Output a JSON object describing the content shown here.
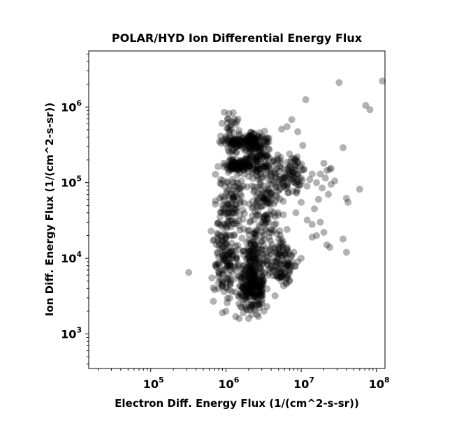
{
  "chart_data": {
    "type": "scatter",
    "title": "POLAR/HYD  Ion Differential Energy Flux",
    "xlabel": "Electron Diff. Energy Flux (1/(cm^2-s-sr))",
    "ylabel": "Ion Diff. Energy Flux (1/(cm^2-s-sr))",
    "xscale": "log",
    "yscale": "log",
    "xlim": [
      15000,
      130000000
    ],
    "ylim": [
      350,
      5500000
    ],
    "x_ticks": [
      {
        "base": "10",
        "exp": "5"
      },
      {
        "base": "10",
        "exp": "6"
      },
      {
        "base": "10",
        "exp": "7"
      },
      {
        "base": "10",
        "exp": "8"
      }
    ],
    "y_ticks": [
      {
        "base": "10",
        "exp": "3"
      },
      {
        "base": "10",
        "exp": "4"
      },
      {
        "base": "10",
        "exp": "5"
      },
      {
        "base": "10",
        "exp": "6"
      }
    ],
    "grid": false,
    "marker_color": "#000000",
    "marker_alpha": 0.3,
    "series": [
      {
        "name": "",
        "points": [
          [
            320000,
            6500
          ],
          [
            680000,
            2700
          ],
          [
            650000,
            5500
          ],
          [
            900000,
            1900
          ],
          [
            1000000,
            2000
          ],
          [
            1500000,
            1600
          ],
          [
            1350000,
            1700
          ],
          [
            2200000,
            1800
          ],
          [
            2700000,
            1700
          ],
          [
            3500000,
            2300
          ],
          [
            4500000,
            3200
          ],
          [
            5500000,
            5000
          ],
          [
            6000000,
            6500
          ],
          [
            7000000,
            7000
          ],
          [
            7500000,
            11000
          ],
          [
            8000000,
            12000
          ],
          [
            9000000,
            9000
          ],
          [
            10000000,
            10000
          ],
          [
            950000,
            850000
          ],
          [
            1100000,
            820000
          ],
          [
            1250000,
            840000
          ],
          [
            1050000,
            700000
          ],
          [
            1400000,
            650000
          ],
          [
            5500000,
            510000
          ],
          [
            6500000,
            550000
          ],
          [
            7500000,
            680000
          ],
          [
            9000000,
            470000
          ],
          [
            10500000,
            310000
          ],
          [
            11500000,
            1250000
          ],
          [
            32000000,
            2100000
          ],
          [
            72000000,
            1050000
          ],
          [
            82000000,
            920000
          ],
          [
            120000000,
            2200000
          ],
          [
            36000000,
            290000
          ],
          [
            20000000,
            180000
          ],
          [
            22000000,
            145000
          ],
          [
            24000000,
            150000
          ],
          [
            25000000,
            155000
          ],
          [
            18000000,
            130000
          ],
          [
            21000000,
            115000
          ],
          [
            16000000,
            100000
          ],
          [
            19000000,
            85000
          ],
          [
            23000000,
            70000
          ],
          [
            17000000,
            60000
          ],
          [
            15000000,
            45000
          ],
          [
            14000000,
            28000
          ],
          [
            12000000,
            32000
          ],
          [
            18000000,
            30000
          ],
          [
            20000000,
            22000
          ],
          [
            22000000,
            15000
          ],
          [
            24000000,
            14000
          ],
          [
            36000000,
            18000
          ],
          [
            40000000,
            12000
          ],
          [
            16000000,
            20000
          ],
          [
            14000000,
            19000
          ],
          [
            60000000,
            82000
          ],
          [
            42000000,
            55000
          ],
          [
            40000000,
            62000
          ],
          [
            25000000,
            95000
          ],
          [
            28000000,
            105000
          ],
          [
            12000000,
            90000
          ],
          [
            13000000,
            110000
          ],
          [
            14000000,
            130000
          ],
          [
            11000000,
            150000
          ],
          [
            9000000,
            185000
          ],
          [
            8000000,
            210000
          ],
          [
            7000000,
            240000
          ],
          [
            10000000,
            55000
          ],
          [
            8500000,
            40000
          ],
          [
            6500000,
            24000
          ],
          [
            5500000,
            15000
          ],
          [
            4500000,
            12000
          ],
          [
            7500000,
            9000
          ],
          [
            3000000,
            2500
          ],
          [
            3200000,
            2000
          ],
          [
            2800000,
            2200
          ],
          [
            2600000,
            1800
          ],
          [
            2000000,
            1600
          ],
          [
            1700000,
            1900
          ],
          [
            1900000,
            2100
          ]
        ],
        "clusters": [
          {
            "x_range": [
              1400000,
              3600000
            ],
            "y_range": [
              1900,
              9000
            ],
            "count": 220
          },
          {
            "x_range": [
              1600000,
              3300000
            ],
            "y_range": [
              3500,
              30000
            ],
            "count": 130
          },
          {
            "x_range": [
              600000,
              1700000
            ],
            "y_range": [
              2500,
              60000
            ],
            "count": 180
          },
          {
            "x_range": [
              700000,
              2000000
            ],
            "y_range": [
              25000,
              170000
            ],
            "count": 80
          },
          {
            "x_range": [
              850000,
              2200000
            ],
            "y_range": [
              130000,
              210000
            ],
            "count": 90
          },
          {
            "x_range": [
              900000,
              4200000
            ],
            "y_range": [
              250000,
              520000
            ],
            "count": 130
          },
          {
            "x_range": [
              1500000,
              4500000
            ],
            "y_range": [
              100000,
              400000
            ],
            "count": 120
          },
          {
            "x_range": [
              2000000,
              6000000
            ],
            "y_range": [
              15000,
              250000
            ],
            "count": 140
          },
          {
            "x_range": [
              3000000,
              9000000
            ],
            "y_range": [
              4000,
              20000
            ],
            "count": 120
          },
          {
            "x_range": [
              4000000,
              12000000
            ],
            "y_range": [
              60000,
              280000
            ],
            "count": 90
          },
          {
            "x_range": [
              800000,
              1600000
            ],
            "y_range": [
              200000,
              800000
            ],
            "count": 40
          }
        ]
      }
    ]
  }
}
